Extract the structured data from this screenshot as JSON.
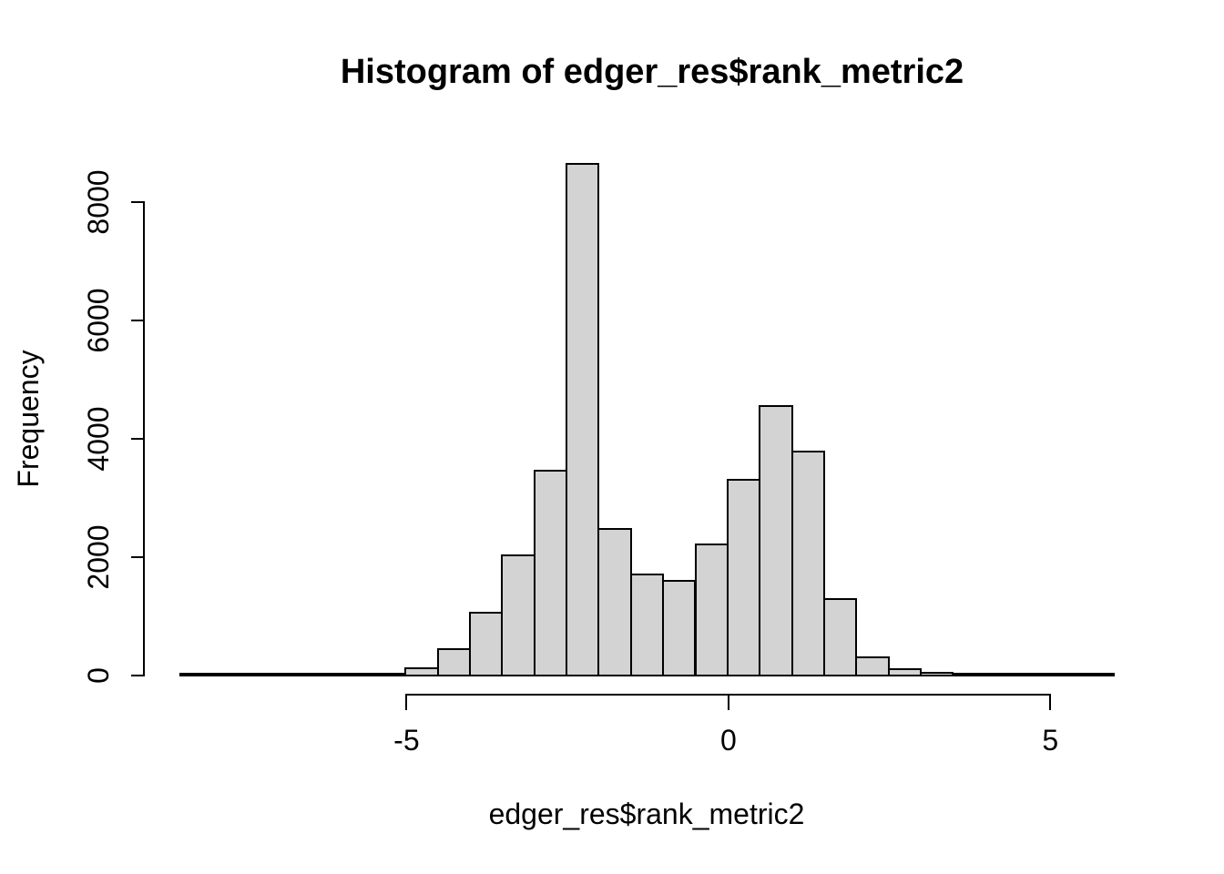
{
  "title": "Histogram of edger_res$rank_metric2",
  "chart_data": {
    "type": "bar",
    "subtype": "histogram",
    "title": "Histogram of edger_res$rank_metric2",
    "xlabel": "edger_res$rank_metric2",
    "ylabel": "Frequency",
    "xlim": [
      -8.5,
      6
    ],
    "ylim": [
      0,
      8650
    ],
    "grid": "off",
    "legend": "none",
    "bar_fill": "#d3d3d3",
    "bar_stroke": "#000000",
    "x_ticks": [
      {
        "value": -5,
        "label": "-5"
      },
      {
        "value": 0,
        "label": "0"
      },
      {
        "value": 5,
        "label": "5"
      }
    ],
    "y_ticks": [
      {
        "value": 0,
        "label": "0"
      },
      {
        "value": 2000,
        "label": "2000"
      },
      {
        "value": 4000,
        "label": "4000"
      },
      {
        "value": 6000,
        "label": "6000"
      },
      {
        "value": 8000,
        "label": "8000"
      }
    ],
    "bin_width": 0.5,
    "bins": [
      {
        "start": -8.5,
        "count": 1
      },
      {
        "start": -8.0,
        "count": 1
      },
      {
        "start": -7.5,
        "count": 2
      },
      {
        "start": -7.0,
        "count": 2
      },
      {
        "start": -6.5,
        "count": 3
      },
      {
        "start": -6.0,
        "count": 6
      },
      {
        "start": -5.5,
        "count": 35
      },
      {
        "start": -5.0,
        "count": 120
      },
      {
        "start": -4.5,
        "count": 450
      },
      {
        "start": -4.0,
        "count": 1060
      },
      {
        "start": -3.5,
        "count": 2030
      },
      {
        "start": -3.0,
        "count": 3460
      },
      {
        "start": -2.5,
        "count": 8650
      },
      {
        "start": -2.0,
        "count": 2480
      },
      {
        "start": -1.5,
        "count": 1710
      },
      {
        "start": -1.0,
        "count": 1600
      },
      {
        "start": -0.5,
        "count": 2220
      },
      {
        "start": 0.0,
        "count": 3310
      },
      {
        "start": 0.5,
        "count": 4550
      },
      {
        "start": 1.0,
        "count": 3790
      },
      {
        "start": 1.5,
        "count": 1290
      },
      {
        "start": 2.0,
        "count": 310
      },
      {
        "start": 2.5,
        "count": 110
      },
      {
        "start": 3.0,
        "count": 50
      },
      {
        "start": 3.5,
        "count": 25
      },
      {
        "start": 4.0,
        "count": 12
      },
      {
        "start": 4.5,
        "count": 8
      },
      {
        "start": 5.0,
        "count": 5
      },
      {
        "start": 5.5,
        "count": 3
      }
    ]
  }
}
